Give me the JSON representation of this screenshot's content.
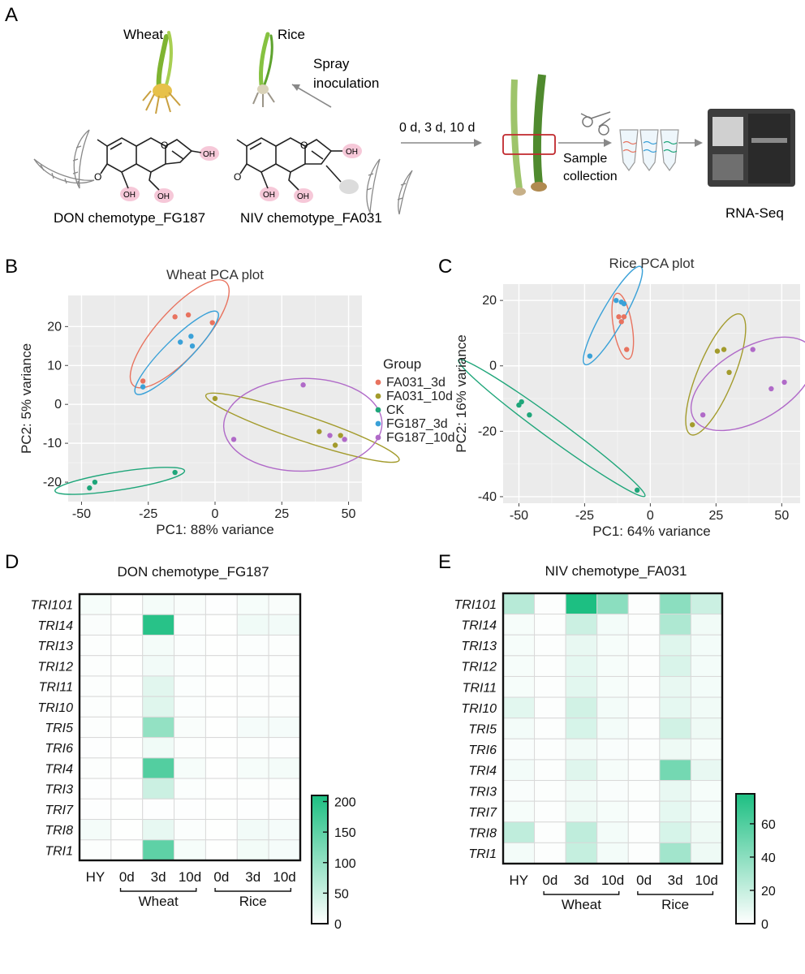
{
  "panelA": {
    "letter": "A",
    "wheat_label": "Wheat",
    "rice_label": "Rice",
    "spray_label_1": "Spray",
    "spray_label_2": "inoculation",
    "timepoints_label": "0 d, 3 d, 10 d",
    "sample_label_1": "Sample",
    "sample_label_2": "collection",
    "rnaseq_label": "RNA-Seq",
    "don_label": "DON chemotype_FG187",
    "niv_label": "NIV chemotype_FA031",
    "oh_label": "OH",
    "o_label": "O"
  },
  "chart_data": [
    {
      "panel": "B",
      "type": "scatter",
      "title": "Wheat PCA plot",
      "xlabel": "PC1: 88% variance",
      "ylabel": "PC2: 5% variance",
      "xlim": [
        -55,
        55
      ],
      "ylim": [
        -25,
        28
      ],
      "xticks": [
        -50,
        -25,
        0,
        25,
        50
      ],
      "xtick_labels": [
        "-50",
        "-25",
        "0",
        "25",
        "50"
      ],
      "yticks": [
        -20,
        -10,
        0,
        10,
        20
      ],
      "ytick_labels": [
        "-20",
        "-10",
        "0",
        "10",
        "20"
      ],
      "grid": true,
      "series": [
        {
          "name": "FA031_3d",
          "color": "#e8735f",
          "points": [
            [
              -27,
              6
            ],
            [
              -15,
              22.5
            ],
            [
              -10,
              23
            ],
            [
              -1,
              21
            ]
          ]
        },
        {
          "name": "FA031_10d",
          "color": "#a39b2c",
          "points": [
            [
              0,
              1.5
            ],
            [
              39,
              -7
            ],
            [
              45,
              -10.5
            ],
            [
              47,
              -8
            ]
          ]
        },
        {
          "name": "CK",
          "color": "#1fa67a",
          "points": [
            [
              -47,
              -21.5
            ],
            [
              -45,
              -20
            ],
            [
              -15,
              -17.5
            ]
          ]
        },
        {
          "name": "FG187_3d",
          "color": "#3aa1d8",
          "points": [
            [
              -27,
              4.5
            ],
            [
              -13,
              16
            ],
            [
              -9,
              17.5
            ],
            [
              -8.5,
              15
            ]
          ]
        },
        {
          "name": "FG187_10d",
          "color": "#b06ac8",
          "points": [
            [
              7,
              -9
            ],
            [
              33,
              5
            ],
            [
              43,
              -8
            ],
            [
              48.5,
              -9
            ]
          ]
        }
      ],
      "legend_title": "Group",
      "legend_position": "right"
    },
    {
      "panel": "C",
      "type": "scatter",
      "title": "Rice PCA plot",
      "xlabel": "PC1: 64% variance",
      "ylabel": "PC2: 16% variance",
      "xlim": [
        -56,
        57
      ],
      "ylim": [
        -42,
        25
      ],
      "xticks": [
        -50,
        -25,
        0,
        25,
        50
      ],
      "xtick_labels": [
        "-50",
        "-25",
        "0",
        "25",
        "50"
      ],
      "yticks": [
        -40,
        -20,
        0,
        20
      ],
      "ytick_labels": [
        "-40",
        "-20",
        "0",
        "20"
      ],
      "grid": true,
      "series": [
        {
          "name": "FA031_3d",
          "color": "#e8735f",
          "points": [
            [
              -12,
              15
            ],
            [
              -10,
              15
            ],
            [
              -11,
              13.5
            ],
            [
              -9,
              5
            ]
          ]
        },
        {
          "name": "FA031_10d",
          "color": "#a39b2c",
          "points": [
            [
              16,
              -18
            ],
            [
              25.5,
              4.5
            ],
            [
              28,
              5
            ],
            [
              30,
              -2
            ]
          ]
        },
        {
          "name": "CK",
          "color": "#1fa67a",
          "points": [
            [
              -50,
              -12
            ],
            [
              -49,
              -11
            ],
            [
              -46,
              -15
            ],
            [
              -5,
              -38
            ]
          ]
        },
        {
          "name": "FG187_3d",
          "color": "#3aa1d8",
          "points": [
            [
              -23,
              3
            ],
            [
              -13,
              20
            ],
            [
              -11,
              19.5
            ],
            [
              -10,
              19
            ]
          ]
        },
        {
          "name": "FG187_10d",
          "color": "#b06ac8",
          "points": [
            [
              20,
              -15
            ],
            [
              39,
              5
            ],
            [
              46,
              -7
            ],
            [
              51,
              -5
            ]
          ]
        }
      ]
    },
    {
      "panel": "D",
      "type": "heatmap",
      "title": "DON chemotype_FG187",
      "rows": [
        "TRI101",
        "TRI14",
        "TRI13",
        "TRI12",
        "TRI11",
        "TRI10",
        "TRI5",
        "TRI6",
        "TRI4",
        "TRI3",
        "TRI7",
        "TRI8",
        "TRI1"
      ],
      "columns": [
        "HY",
        "0d",
        "3d",
        "10d",
        "0d",
        "3d",
        "10d"
      ],
      "column_groups": [
        {
          "label": "Wheat",
          "from": 1,
          "to": 3
        },
        {
          "label": "Rice",
          "from": 4,
          "to": 6
        }
      ],
      "values": [
        [
          8,
          1,
          10,
          6,
          2,
          8,
          6
        ],
        [
          5,
          1,
          200,
          4,
          1,
          14,
          12
        ],
        [
          3,
          1,
          10,
          4,
          1,
          4,
          3
        ],
        [
          3,
          1,
          12,
          4,
          1,
          4,
          3
        ],
        [
          3,
          1,
          28,
          4,
          1,
          3,
          3
        ],
        [
          3,
          1,
          30,
          4,
          1,
          3,
          3
        ],
        [
          3,
          1,
          100,
          6,
          1,
          9,
          9
        ],
        [
          2,
          1,
          14,
          3,
          1,
          3,
          2
        ],
        [
          3,
          1,
          160,
          8,
          1,
          8,
          10
        ],
        [
          2,
          1,
          48,
          4,
          1,
          3,
          3
        ],
        [
          2,
          1,
          2,
          2,
          1,
          2,
          2
        ],
        [
          10,
          1,
          22,
          4,
          1,
          12,
          9
        ],
        [
          3,
          1,
          150,
          8,
          1,
          11,
          9
        ]
      ],
      "scale_min": 0,
      "scale_max": 210,
      "scale_ticks": [
        0,
        50,
        100,
        150,
        200
      ],
      "scale_tick_labels": [
        "0",
        "50",
        "100",
        "150",
        "200"
      ]
    },
    {
      "panel": "E",
      "type": "heatmap",
      "title": "NIV chemotype_FA031",
      "rows": [
        "TRI101",
        "TRI14",
        "TRI13",
        "TRI12",
        "TRI11",
        "TRI10",
        "TRI5",
        "TRI6",
        "TRI4",
        "TRI3",
        "TRI7",
        "TRI8",
        "TRI1"
      ],
      "columns": [
        "HY",
        "0d",
        "3d",
        "10d",
        "0d",
        "3d",
        "10d"
      ],
      "column_groups": [
        {
          "label": "Wheat",
          "from": 1,
          "to": 3
        },
        {
          "label": "Rice",
          "from": 4,
          "to": 6
        }
      ],
      "values": [
        [
          25,
          1,
          78,
          40,
          1,
          40,
          18
        ],
        [
          3,
          1,
          18,
          4,
          1,
          28,
          5
        ],
        [
          3,
          1,
          8,
          3,
          1,
          11,
          4
        ],
        [
          3,
          1,
          9,
          3,
          1,
          13,
          4
        ],
        [
          3,
          1,
          10,
          3,
          1,
          8,
          4
        ],
        [
          10,
          1,
          16,
          4,
          1,
          9,
          5
        ],
        [
          4,
          1,
          14,
          4,
          1,
          16,
          6
        ],
        [
          2,
          1,
          5,
          2,
          1,
          6,
          3
        ],
        [
          4,
          1,
          11,
          3,
          1,
          48,
          8
        ],
        [
          2,
          1,
          5,
          2,
          1,
          8,
          3
        ],
        [
          3,
          1,
          6,
          3,
          1,
          9,
          4
        ],
        [
          22,
          1,
          22,
          4,
          1,
          14,
          6
        ],
        [
          4,
          1,
          20,
          4,
          1,
          32,
          6
        ]
      ],
      "scale_min": 0,
      "scale_max": 78,
      "scale_ticks": [
        0,
        20,
        40,
        60
      ],
      "scale_tick_labels": [
        "0",
        "20",
        "40",
        "60"
      ]
    }
  ],
  "colors": {
    "heat_low": "#ffffff",
    "heat_high": "#1dbf82",
    "panel_bg": "#ebebeb",
    "grid": "#ffffff",
    "arrow": "#888888"
  }
}
